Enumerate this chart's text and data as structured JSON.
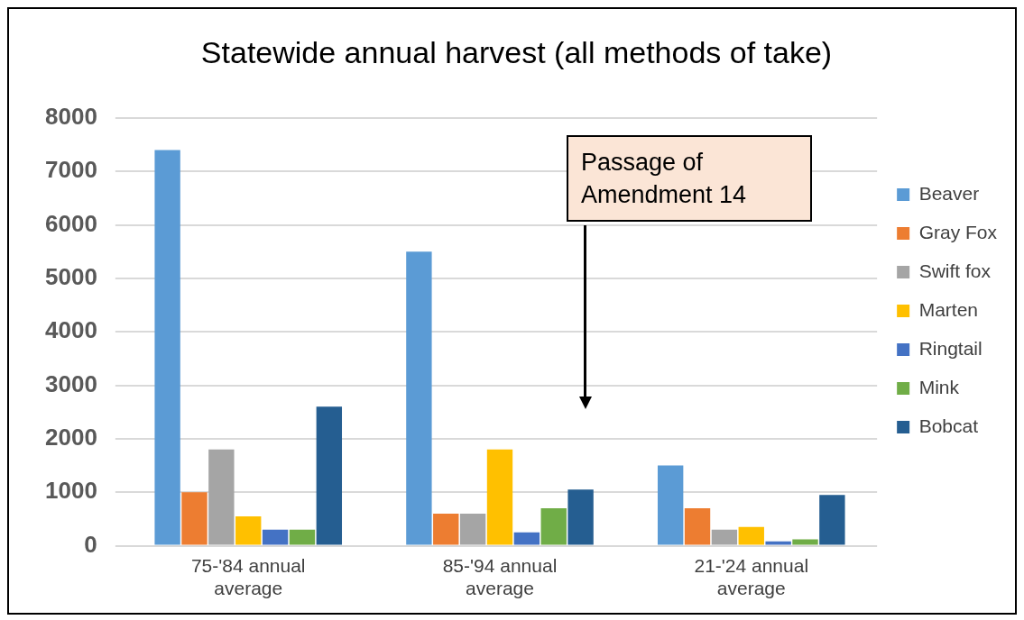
{
  "chart_data": {
    "type": "bar",
    "title": "Statewide annual harvest (all methods of take)",
    "categories": [
      "75-'84 annual average",
      "85-'94 annual average",
      "21-'24 annual average"
    ],
    "series": [
      {
        "name": "Beaver",
        "color": "#5b9bd5",
        "values": [
          7400,
          5500,
          1500
        ]
      },
      {
        "name": "Gray Fox",
        "color": "#ed7d31",
        "values": [
          1000,
          600,
          700
        ]
      },
      {
        "name": "Swift fox",
        "color": "#a5a5a5",
        "values": [
          1800,
          600,
          300
        ]
      },
      {
        "name": "Marten",
        "color": "#ffc000",
        "values": [
          550,
          1800,
          350
        ]
      },
      {
        "name": "Ringtail",
        "color": "#4472c4",
        "values": [
          300,
          250,
          80
        ]
      },
      {
        "name": "Mink",
        "color": "#70ad47",
        "values": [
          300,
          700,
          120
        ]
      },
      {
        "name": "Bobcat",
        "color": "#255e91",
        "values": [
          2600,
          1050,
          950
        ]
      }
    ],
    "ylim": [
      0,
      8000
    ],
    "yticks": [
      0,
      1000,
      2000,
      3000,
      4000,
      5000,
      6000,
      7000,
      8000
    ],
    "grid": "y",
    "legend": "right",
    "annotations": [
      "Passage of Amendment 14"
    ]
  }
}
